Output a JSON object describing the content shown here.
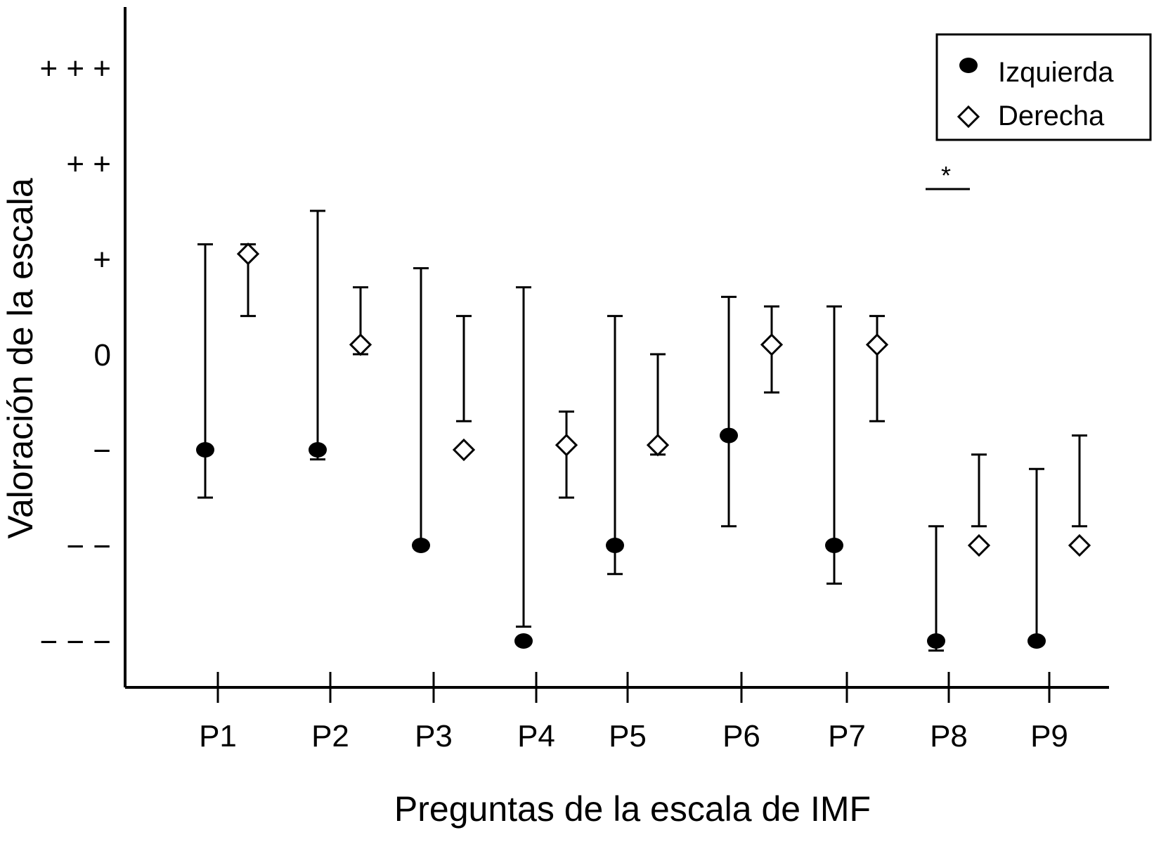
{
  "chart_data": {
    "type": "scatter",
    "xlabel": "Preguntas de la escala de IMF",
    "ylabel": "Valoración de la escala",
    "categories": [
      "P1",
      "P2",
      "P3",
      "P4",
      "P5",
      "P6",
      "P7",
      "P8",
      "P9"
    ],
    "y_tick_labels": [
      "− − −",
      "− −",
      "−",
      "0",
      "+",
      "+ +",
      "+ + +"
    ],
    "y_tick_values": [
      -3,
      -2,
      -1,
      0,
      1,
      2,
      3
    ],
    "ylim": [
      -3.5,
      3.6
    ],
    "grid": false,
    "legend_position": "top-right",
    "series": [
      {
        "name": "Izquierda",
        "marker": "filled-circle",
        "color": "#000000",
        "values": [
          -1.0,
          -1.0,
          -2.0,
          -3.0,
          -2.0,
          -0.85,
          -2.0,
          -3.0,
          -3.0
        ],
        "error_low": [
          -1.5,
          -1.1,
          -2.0,
          -2.85,
          -2.3,
          -1.8,
          -2.4,
          -3.1,
          -3.0
        ],
        "error_high": [
          1.15,
          1.5,
          0.9,
          0.7,
          0.4,
          0.6,
          0.5,
          -1.8,
          -1.2
        ]
      },
      {
        "name": "Derecha",
        "marker": "open-diamond",
        "color": "#000000",
        "values": [
          1.05,
          0.1,
          -1.0,
          -0.95,
          -0.95,
          0.1,
          0.1,
          -2.0,
          -2.0
        ],
        "error_low": [
          0.4,
          0.0,
          -0.7,
          -1.5,
          -1.05,
          -0.4,
          -0.7,
          -1.8,
          -1.8
        ],
        "error_high": [
          1.15,
          0.7,
          0.4,
          -0.6,
          0.0,
          0.5,
          0.4,
          -1.05,
          -0.85
        ]
      }
    ],
    "annotations": [
      {
        "text": "*",
        "category": "P8"
      }
    ]
  }
}
